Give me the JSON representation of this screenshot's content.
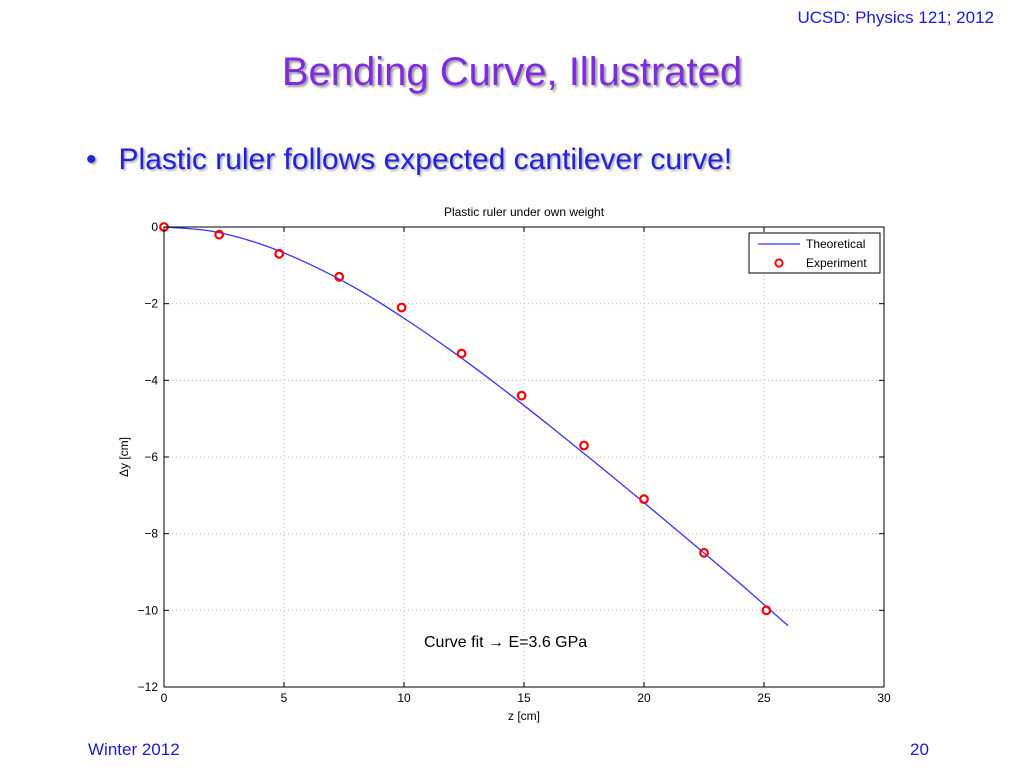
{
  "header": {
    "course": "UCSD: Physics 121; 2012"
  },
  "slide": {
    "title": "Bending Curve, Illustrated",
    "bullet": "Plastic ruler follows expected cantilever curve!"
  },
  "footer": {
    "left": "Winter 2012",
    "page": "20"
  },
  "chart_data": {
    "type": "line",
    "title": "Plastic ruler under own weight",
    "xlabel": "z [cm]",
    "ylabel": "Δy [cm]",
    "xlim": [
      0,
      30
    ],
    "ylim": [
      -12,
      0
    ],
    "xticks": [
      0,
      5,
      10,
      15,
      20,
      25,
      30
    ],
    "yticks": [
      0,
      -2,
      -4,
      -6,
      -8,
      -10,
      -12
    ],
    "grid": true,
    "legend_position": "top-right",
    "annotation": "Curve fit → E=3.6 GPa",
    "series": [
      {
        "name": "Theoretical",
        "kind": "line",
        "color": "#3333ff",
        "x": [
          0,
          2,
          4,
          6,
          8,
          10,
          12,
          14,
          16,
          18,
          20,
          22,
          24,
          26
        ],
        "y": [
          0,
          -0.11,
          -0.44,
          -0.95,
          -1.6,
          -2.38,
          -3.24,
          -4.17,
          -5.15,
          -6.16,
          -7.19,
          -8.24,
          -9.3,
          -10.4
        ]
      },
      {
        "name": "Experiment",
        "kind": "scatter",
        "color": "#ff0000",
        "x": [
          0,
          2.3,
          4.8,
          7.3,
          9.9,
          12.4,
          14.9,
          17.5,
          20,
          22.5,
          25.1
        ],
        "y": [
          0,
          -0.2,
          -0.7,
          -1.3,
          -2.1,
          -3.3,
          -4.4,
          -5.7,
          -7.1,
          -8.5,
          -10
        ]
      }
    ]
  }
}
